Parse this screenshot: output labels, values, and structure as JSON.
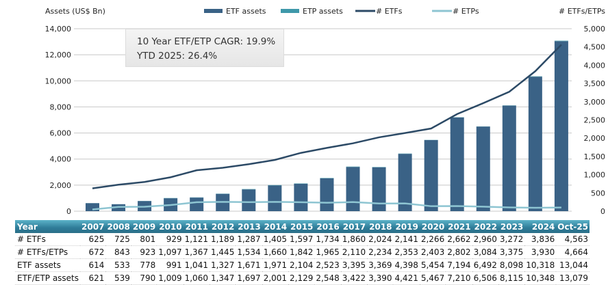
{
  "chart_data": {
    "type": "bar",
    "left_axis_label": "Assets (US$ Bn)",
    "right_axis_label": "# ETFs/ETPs",
    "ylim_left": [
      0,
      14000
    ],
    "ylim_right": [
      0,
      5000
    ],
    "left_ticks": [
      "0",
      "2,000",
      "4,000",
      "6,000",
      "8,000",
      "10,000",
      "12,000",
      "14,000"
    ],
    "right_ticks": [
      "0",
      "500",
      "1,000",
      "1,500",
      "2,000",
      "2,500",
      "3,000",
      "3,500",
      "4,000",
      "4,500",
      "5,000"
    ],
    "grid": true,
    "legend_position": "top",
    "categories": [
      "2007",
      "2008",
      "2009",
      "2010",
      "2011",
      "2012",
      "2013",
      "2014",
      "2015",
      "2016",
      "2017",
      "2018",
      "2019",
      "2020",
      "2021",
      "2022",
      "2023",
      "2024",
      "Oct-25"
    ],
    "series": [
      {
        "name": "ETF assets",
        "type": "bar",
        "axis": "left",
        "color": "#3a6286",
        "values": [
          614,
          533,
          778,
          991,
          1041,
          1327,
          1671,
          1971,
          2104,
          2523,
          3395,
          3369,
          4398,
          5454,
          7194,
          6492,
          8098,
          10318,
          13044
        ]
      },
      {
        "name": "ETP assets",
        "type": "bar",
        "axis": "left",
        "color": "#3f98aa",
        "values": [
          7,
          6,
          12,
          18,
          19,
          20,
          26,
          30,
          25,
          25,
          27,
          21,
          23,
          13,
          16,
          14,
          17,
          30,
          35
        ]
      },
      {
        "name": "# ETFs",
        "type": "line",
        "axis": "right",
        "color": "#2c4a66",
        "values": [
          625,
          725,
          801,
          929,
          1121,
          1189,
          1287,
          1405,
          1597,
          1734,
          1860,
          2024,
          2141,
          2266,
          2662,
          2960,
          3272,
          3836,
          4563
        ]
      },
      {
        "name": "# ETPs",
        "type": "line",
        "axis": "right",
        "color": "#8ec5d2",
        "values": [
          47,
          118,
          122,
          168,
          246,
          256,
          247,
          255,
          245,
          231,
          250,
          210,
          212,
          137,
          140,
          124,
          103,
          94,
          101
        ]
      }
    ]
  },
  "annotation": {
    "line1": "10 Year ETF/ETP CAGR: 19.9%",
    "line2": "YTD 2025: 26.4%"
  },
  "table": {
    "header": [
      "Year",
      "2007",
      "2008",
      "2009",
      "2010",
      "2011",
      "2012",
      "2013",
      "2014",
      "2015",
      "2016",
      "2017",
      "2018",
      "2019",
      "2020",
      "2021",
      "2022",
      "2023",
      "2024",
      "Oct-25"
    ],
    "rows": [
      [
        "# ETFs",
        "625",
        "725",
        "801",
        "929",
        "1,121",
        "1,189",
        "1,287",
        "1,405",
        "1,597",
        "1,734",
        "1,860",
        "2,024",
        "2,141",
        "2,266",
        "2,662",
        "2,960",
        "3,272",
        "3,836",
        "4,563"
      ],
      [
        "# ETFs/ETPs",
        "672",
        "843",
        "923",
        "1,097",
        "1,367",
        "1,445",
        "1,534",
        "1,660",
        "1,842",
        "1,965",
        "2,110",
        "2,234",
        "2,353",
        "2,403",
        "2,802",
        "3,084",
        "3,375",
        "3,930",
        "4,664"
      ],
      [
        "ETF assets",
        "614",
        "533",
        "778",
        "991",
        "1,041",
        "1,327",
        "1,671",
        "1,971",
        "2,104",
        "2,523",
        "3,395",
        "3,369",
        "4,398",
        "5,454",
        "7,194",
        "6,492",
        "8,098",
        "10,318",
        "13,044"
      ],
      [
        "ETF/ETP assets",
        "621",
        "539",
        "790",
        "1,009",
        "1,060",
        "1,347",
        "1,697",
        "2,001",
        "2,129",
        "2,548",
        "3,422",
        "3,390",
        "4,421",
        "5,467",
        "7,210",
        "6,506",
        "8,115",
        "10,348",
        "13,079"
      ]
    ]
  }
}
